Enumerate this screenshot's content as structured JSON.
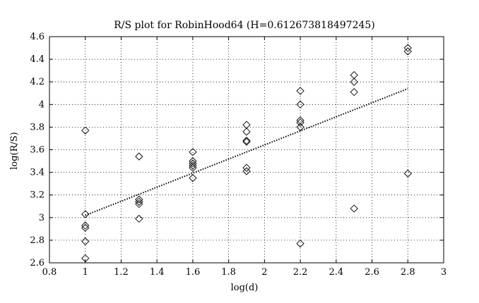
{
  "chart_data": {
    "type": "scatter",
    "title": "R/S plot for RobinHood64 (H=0.612673818497245)",
    "xlabel": "log(d)",
    "ylabel": "log(R/S)",
    "xlim": [
      0.8,
      3.0
    ],
    "ylim": [
      2.6,
      4.6
    ],
    "xticks": [
      "0.8",
      "1",
      "1.2",
      "1.4",
      "1.6",
      "1.8",
      "2",
      "2.2",
      "2.4",
      "2.6",
      "2.8",
      "3"
    ],
    "yticks": [
      "2.6",
      "2.8",
      "3",
      "3.2",
      "3.4",
      "3.6",
      "3.8",
      "4",
      "4.2",
      "4.4",
      "4.6"
    ],
    "grid": true,
    "series": [
      {
        "marker": "diamond",
        "points": [
          {
            "x": 1.0,
            "y": 3.77
          },
          {
            "x": 1.0,
            "y": 3.03
          },
          {
            "x": 1.0,
            "y": 2.93
          },
          {
            "x": 1.0,
            "y": 2.91
          },
          {
            "x": 1.0,
            "y": 2.79
          },
          {
            "x": 1.0,
            "y": 2.64
          },
          {
            "x": 1.3,
            "y": 3.54
          },
          {
            "x": 1.3,
            "y": 3.16
          },
          {
            "x": 1.3,
            "y": 3.14
          },
          {
            "x": 1.3,
            "y": 3.12
          },
          {
            "x": 1.3,
            "y": 2.99
          },
          {
            "x": 1.6,
            "y": 3.58
          },
          {
            "x": 1.6,
            "y": 3.5
          },
          {
            "x": 1.6,
            "y": 3.48
          },
          {
            "x": 1.6,
            "y": 3.46
          },
          {
            "x": 1.6,
            "y": 3.44
          },
          {
            "x": 1.6,
            "y": 3.35
          },
          {
            "x": 1.9,
            "y": 3.82
          },
          {
            "x": 1.9,
            "y": 3.76
          },
          {
            "x": 1.9,
            "y": 3.68
          },
          {
            "x": 1.9,
            "y": 3.67
          },
          {
            "x": 1.9,
            "y": 3.44
          },
          {
            "x": 1.9,
            "y": 3.41
          },
          {
            "x": 2.2,
            "y": 4.12
          },
          {
            "x": 2.2,
            "y": 4.0
          },
          {
            "x": 2.2,
            "y": 3.86
          },
          {
            "x": 2.2,
            "y": 3.84
          },
          {
            "x": 2.2,
            "y": 3.8
          },
          {
            "x": 2.2,
            "y": 2.77
          },
          {
            "x": 2.5,
            "y": 4.26
          },
          {
            "x": 2.5,
            "y": 4.2
          },
          {
            "x": 2.5,
            "y": 4.11
          },
          {
            "x": 2.5,
            "y": 3.08
          },
          {
            "x": 2.8,
            "y": 4.5
          },
          {
            "x": 2.8,
            "y": 4.47
          },
          {
            "x": 2.8,
            "y": 3.39
          }
        ]
      }
    ],
    "fit_line": {
      "style": "dotted",
      "x": [
        1.0,
        2.8
      ],
      "y": [
        3.02,
        4.14
      ]
    }
  }
}
